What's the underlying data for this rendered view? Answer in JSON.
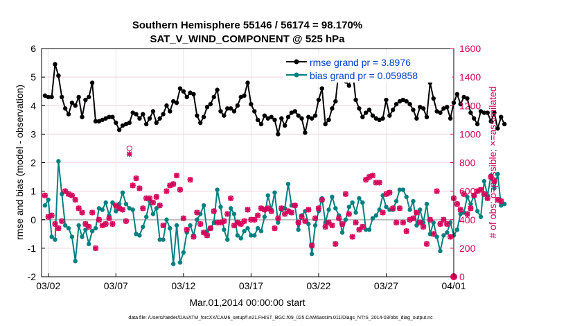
{
  "title_line1": "Southern Hemisphere 55146 / 56174 = 98.170%",
  "title_line2": "SAT_V_WIND_COMPONENT @ 525 hPa",
  "footer": "data file: /Users/raeder/DAI/ATM_forcXX/CAM6_setup/f.e21.FHIST_BGC.f09_025.CAM6assim.011/Diags_NTrS_2014-03/obs_diag_output.nc",
  "colors": {
    "rmse": "#000000",
    "bias": "#008080",
    "obs": "#d6005a",
    "zero_line": "#bbbbbb"
  },
  "chart_data": {
    "type": "line",
    "title": "Southern Hemisphere 55146 / 56174 = 98.170%",
    "subtitle": "SAT_V_WIND_COMPONENT @ 525 hPa",
    "xlabel": "Mar.01,2014 00:00:00 start",
    "ylabel_left": "rmse and bias (model - observation)",
    "ylabel_right": "# of obs: o=possible; ×=assimilated",
    "x_ticks": [
      "03/02",
      "03/07",
      "03/12",
      "03/17",
      "03/22",
      "03/27",
      "04/01"
    ],
    "x_tick_values": [
      1,
      6,
      11,
      16,
      21,
      26,
      31
    ],
    "xlim": [
      0.5,
      31
    ],
    "ylim_left": [
      -2,
      6
    ],
    "yticks_left": [
      -2,
      -1,
      0,
      1,
      2,
      3,
      4,
      5,
      6
    ],
    "ylim_right": [
      0,
      1600
    ],
    "yticks_right": [
      0,
      200,
      400,
      600,
      800,
      1000,
      1200,
      1400,
      1600
    ],
    "x_step_days": 0.25,
    "legend": {
      "position": "top-right",
      "entries": [
        "rmse grand pr = 3.8976",
        "bias grand pr = 0.059858"
      ]
    },
    "series": [
      {
        "name": "rmse grand pr = 3.8976",
        "axis": "left",
        "marker": "dot",
        "x_start": 0.75,
        "values": [
          4.35,
          4.3,
          4.3,
          5.45,
          5.05,
          4.3,
          3.9,
          3.7,
          4.1,
          4.0,
          4.3,
          3.6,
          4.2,
          4.3,
          4.8,
          3.45,
          3.45,
          3.5,
          3.55,
          3.6,
          3.6,
          3.4,
          3.15,
          3.3,
          3.35,
          3.4,
          3.75,
          3.7,
          3.55,
          3.7,
          3.35,
          3.55,
          3.8,
          3.4,
          3.55,
          3.7,
          4.0,
          3.8,
          4.15,
          4.1,
          4.6,
          4.5,
          4.3,
          4.45,
          4.4,
          3.65,
          3.4,
          3.6,
          3.95,
          4.05,
          4.3,
          4.55,
          3.8,
          3.65,
          3.9,
          3.9,
          3.8,
          4.0,
          4.3,
          4.35,
          4.8,
          4.05,
          3.8,
          3.5,
          3.35,
          3.65,
          3.55,
          3.6,
          3.5,
          3.0,
          3.55,
          3.3,
          3.6,
          3.75,
          3.8,
          3.65,
          3.55,
          3.05,
          3.6,
          3.55,
          3.65,
          4.2,
          4.6,
          3.35,
          3.5,
          3.9,
          4.15,
          5.25,
          5.05,
          4.85,
          4.7,
          5.3,
          4.2,
          3.9,
          3.6,
          3.75,
          3.85,
          3.65,
          3.55,
          3.5,
          3.55,
          4.2,
          3.65,
          3.85,
          4.05,
          4.15,
          4.2,
          4.15,
          4.05,
          3.85,
          3.55,
          3.95,
          3.9,
          3.6,
          4.8,
          4.25,
          3.8,
          3.75,
          3.9,
          3.95,
          3.55,
          4.1,
          4.4,
          4.05,
          4.3,
          4.25,
          3.75,
          3.55,
          3.35,
          3.8,
          3.75,
          3.75,
          3.45,
          3.75,
          3.2,
          3.6,
          3.35
        ]
      },
      {
        "name": "bias grand pr = 0.059858",
        "axis": "left",
        "marker": "dot",
        "x_start": 0.75,
        "values": [
          0.5,
          0.7,
          -0.6,
          -0.7,
          2.05,
          0.9,
          -0.2,
          -0.3,
          -0.6,
          -1.45,
          -0.2,
          -0.6,
          -0.35,
          -0.85,
          -0.4,
          -0.3,
          0.4,
          0.35,
          0.6,
          0.15,
          0.6,
          0.3,
          0.55,
          0.95,
          0.55,
          0.4,
          0.35,
          -0.5,
          -0.55,
          -0.25,
          0.1,
          0.65,
          0.2,
          0.4,
          -0.7,
          -0.7,
          0.0,
          -0.3,
          -1.55,
          -0.2,
          -1.5,
          -1.15,
          -0.45,
          -0.2,
          -0.55,
          0.0,
          0.2,
          0.5,
          -0.4,
          -0.3,
          -0.1,
          1.05,
          0.45,
          -0.35,
          -0.7,
          0.4,
          0.2,
          -0.55,
          -0.65,
          -0.4,
          -0.3,
          -0.55,
          -0.55,
          -0.3,
          -0.4,
          0.1,
          0.85,
          0.35,
          0.95,
          -0.1,
          0.35,
          0.4,
          1.25,
          0.5,
          0.5,
          -0.35,
          0.15,
          0.3,
          -0.15,
          -1.2,
          -0.2,
          0.3,
          0.75,
          -0.1,
          0.35,
          0.8,
          0.4,
          0.15,
          -0.45,
          0.0,
          0.45,
          0.6,
          0.25,
          0.75,
          0.6,
          -0.35,
          -0.35,
          0.05,
          0.15,
          0.35,
          0.85,
          0.45,
          0.35,
          0.35,
          0.65,
          1.05,
          1.05,
          0.8,
          0.35,
          0.65,
          -0.2,
          0.35,
          -0.1,
          0.55,
          -0.5,
          -0.1,
          -0.6,
          -1.1,
          -0.55,
          -0.45,
          -0.1,
          -0.55,
          -0.35,
          0.2,
          0.25,
          0.8,
          0.55,
          0.85,
          0.3,
          0.1,
          1.35,
          0.85,
          1.55,
          1.1,
          1.6,
          0.5,
          0.55
        ]
      },
      {
        "name": "",
        "axis": "right",
        "marker": "x",
        "x_start": 0.75,
        "values": [
          570,
          420,
          430,
          370,
          340,
          390,
          600,
          580,
          570,
          540,
          480,
          450,
          370,
          350,
          450,
          200,
          400,
          360,
          370,
          410,
          370,
          500,
          480,
          470,
          390,
          860,
          640,
          690,
          620,
          480,
          550,
          550,
          520,
          560,
          500,
          360,
          600,
          640,
          650,
          710,
          610,
          410,
          330,
          680,
          280,
          450,
          370,
          310,
          290,
          340,
          460,
          380,
          380,
          390,
          440,
          550,
          360,
          380,
          370,
          390,
          470,
          400,
          400,
          430,
          480,
          470,
          480,
          460,
          340,
          410,
          480,
          440,
          460,
          450,
          500,
          380,
          420,
          390,
          470,
          220,
          410,
          480,
          540,
          350,
          380,
          360,
          230,
          410,
          370,
          580,
          440,
          280,
          380,
          330,
          350,
          680,
          700,
          710,
          660,
          660,
          450,
          580,
          590,
          480,
          380,
          480,
          380,
          320,
          400,
          410,
          450,
          380,
          350,
          230,
          400,
          300,
          600,
          370,
          400,
          370,
          280,
          550,
          510,
          470,
          580,
          440,
          480,
          570,
          600,
          610,
          580,
          550,
          700,
          670,
          540,
          530
        ]
      },
      {
        "name": "",
        "axis": "right",
        "marker": "o",
        "x_start": 0.75,
        "values": [
          570,
          420,
          430,
          370,
          340,
          390,
          600,
          580,
          570,
          540,
          480,
          450,
          370,
          350,
          450,
          200,
          400,
          360,
          370,
          410,
          370,
          500,
          480,
          470,
          390,
          900,
          640,
          690,
          620,
          480,
          550,
          550,
          520,
          560,
          500,
          360,
          600,
          640,
          650,
          710,
          610,
          410,
          330,
          680,
          280,
          450,
          370,
          310,
          290,
          340,
          460,
          380,
          380,
          390,
          440,
          550,
          360,
          380,
          370,
          390,
          470,
          400,
          400,
          430,
          480,
          470,
          480,
          460,
          340,
          410,
          480,
          440,
          460,
          450,
          500,
          380,
          420,
          390,
          470,
          220,
          410,
          480,
          540,
          350,
          380,
          360,
          230,
          410,
          370,
          580,
          440,
          280,
          380,
          330,
          350,
          680,
          700,
          710,
          660,
          660,
          450,
          580,
          590,
          480,
          380,
          480,
          380,
          320,
          400,
          410,
          450,
          380,
          350,
          230,
          400,
          300,
          600,
          370,
          400,
          370,
          280,
          550,
          510,
          470,
          580,
          440,
          480,
          570,
          600,
          610,
          580,
          550,
          700,
          670,
          540,
          530
        ]
      }
    ]
  }
}
